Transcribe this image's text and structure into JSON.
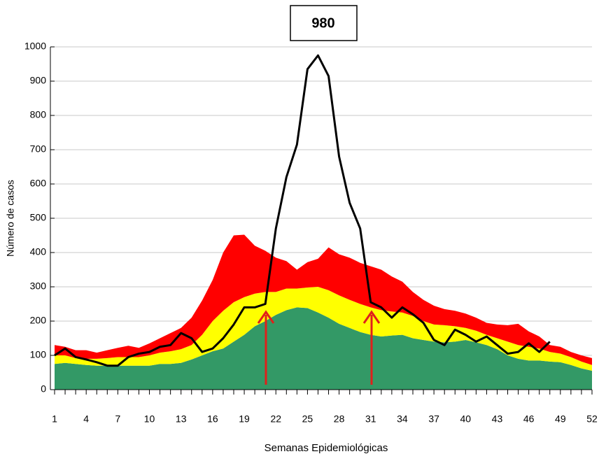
{
  "chart_data": {
    "type": "area",
    "annotation": "980",
    "xlabel": "Semanas Epidemiológicas",
    "ylabel": "Número de casos",
    "x": [
      1,
      2,
      3,
      4,
      5,
      6,
      7,
      8,
      9,
      10,
      11,
      12,
      13,
      14,
      15,
      16,
      17,
      18,
      19,
      20,
      21,
      22,
      23,
      24,
      25,
      26,
      27,
      28,
      29,
      30,
      31,
      32,
      33,
      34,
      35,
      36,
      37,
      38,
      39,
      40,
      41,
      42,
      43,
      44,
      45,
      46,
      47,
      48,
      49,
      50,
      51,
      52
    ],
    "xlim": [
      1,
      52
    ],
    "xticks": [
      1,
      4,
      7,
      10,
      13,
      16,
      19,
      22,
      25,
      28,
      31,
      34,
      37,
      40,
      43,
      46,
      49,
      52
    ],
    "ylim": [
      0,
      1000
    ],
    "yticks": [
      0,
      100,
      200,
      300,
      400,
      500,
      600,
      700,
      800,
      900,
      1000
    ],
    "grid": true,
    "series": [
      {
        "type": "area",
        "color": "#339966",
        "values": [
          75,
          78,
          75,
          72,
          70,
          70,
          70,
          70,
          70,
          70,
          75,
          75,
          78,
          88,
          100,
          112,
          120,
          140,
          160,
          185,
          200,
          218,
          232,
          240,
          238,
          225,
          210,
          192,
          180,
          168,
          160,
          155,
          158,
          160,
          150,
          145,
          140,
          138,
          140,
          145,
          138,
          130,
          118,
          100,
          90,
          85,
          85,
          82,
          80,
          72,
          62,
          55
        ]
      },
      {
        "type": "area",
        "color": "#ffff00",
        "values": [
          25,
          22,
          17,
          18,
          20,
          22,
          25,
          25,
          25,
          30,
          33,
          37,
          40,
          42,
          60,
          88,
          110,
          115,
          110,
          95,
          85,
          67,
          63,
          55,
          60,
          75,
          80,
          83,
          82,
          82,
          80,
          77,
          70,
          65,
          65,
          55,
          50,
          50,
          45,
          35,
          34,
          30,
          32,
          40,
          40,
          40,
          35,
          28,
          25,
          23,
          20,
          17
        ]
      },
      {
        "type": "area",
        "color": "#ff0000",
        "values": [
          30,
          25,
          23,
          25,
          18,
          23,
          27,
          33,
          27,
          35,
          42,
          53,
          62,
          80,
          100,
          120,
          170,
          195,
          182,
          140,
          120,
          100,
          80,
          55,
          74,
          82,
          125,
          120,
          123,
          120,
          120,
          118,
          102,
          90,
          70,
          62,
          55,
          47,
          45,
          42,
          38,
          35,
          40,
          48,
          62,
          45,
          35,
          20,
          20,
          15,
          18,
          20
        ]
      },
      {
        "type": "line",
        "color": "#000000",
        "values": [
          100,
          120,
          95,
          88,
          80,
          70,
          70,
          95,
          105,
          110,
          125,
          130,
          165,
          150,
          110,
          120,
          150,
          190,
          240,
          240,
          250,
          470,
          620,
          715,
          935,
          975,
          915,
          680,
          545,
          470,
          255,
          240,
          210,
          240,
          220,
          195,
          145,
          130,
          175,
          160,
          140,
          155,
          130,
          105,
          110,
          135,
          110,
          140,
          null,
          null,
          null,
          null
        ]
      }
    ]
  }
}
